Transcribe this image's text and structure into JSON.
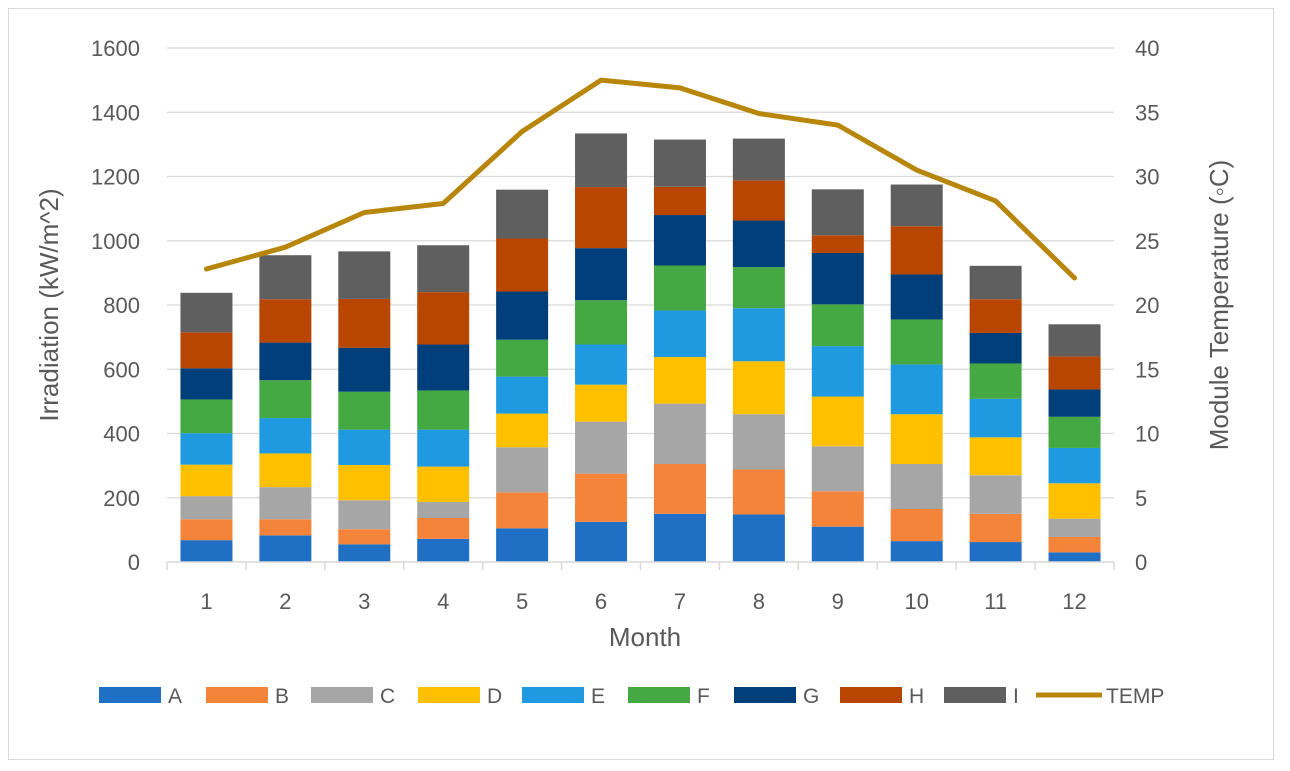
{
  "chart_data": {
    "type": "bar",
    "stacked": true,
    "title": "",
    "xlabel": "Month",
    "ylabel": "Irradiation (kW/m^2)",
    "y2label": "Module Temperature (◦C)",
    "ylim": [
      0,
      1600
    ],
    "y2lim": [
      0,
      40
    ],
    "yticks": [
      "0",
      "200",
      "400",
      "600",
      "800",
      "1000",
      "1200",
      "1400",
      "1600"
    ],
    "y2ticks": [
      "0",
      "5",
      "10",
      "15",
      "20",
      "25",
      "30",
      "35",
      "40"
    ],
    "grid": true,
    "legend": "bottom",
    "categories": [
      "1",
      "2",
      "3",
      "4",
      "5",
      "6",
      "7",
      "8",
      "9",
      "10",
      "11",
      "12"
    ],
    "series": [
      {
        "name": "A",
        "color": "#1f6fc4",
        "values": [
          68,
          83,
          55,
          72,
          105,
          125,
          150,
          148,
          110,
          65,
          62,
          30
        ]
      },
      {
        "name": "B",
        "color": "#f5843b",
        "values": [
          65,
          50,
          47,
          65,
          112,
          150,
          155,
          140,
          110,
          100,
          88,
          48
        ]
      },
      {
        "name": "C",
        "color": "#a6a6a6",
        "values": [
          72,
          100,
          90,
          50,
          140,
          162,
          188,
          172,
          140,
          140,
          120,
          57
        ]
      },
      {
        "name": "D",
        "color": "#ffc000",
        "values": [
          98,
          105,
          110,
          110,
          105,
          115,
          145,
          165,
          155,
          155,
          118,
          110
        ]
      },
      {
        "name": "E",
        "color": "#1f9ae0",
        "values": [
          98,
          110,
          110,
          115,
          115,
          125,
          145,
          165,
          157,
          155,
          120,
          110
        ]
      },
      {
        "name": "F",
        "color": "#44a843",
        "values": [
          105,
          118,
          118,
          122,
          115,
          138,
          140,
          128,
          130,
          140,
          110,
          97
        ]
      },
      {
        "name": "G",
        "color": "#003f7a",
        "values": [
          97,
          117,
          137,
          143,
          150,
          162,
          157,
          145,
          160,
          140,
          95,
          85
        ]
      },
      {
        "name": "H",
        "color": "#b84500",
        "values": [
          112,
          135,
          152,
          163,
          165,
          190,
          88,
          125,
          55,
          150,
          105,
          103
        ]
      },
      {
        "name": "I",
        "color": "#5f5f5f",
        "values": [
          123,
          137,
          148,
          146,
          152,
          167,
          147,
          130,
          143,
          130,
          104,
          100
        ]
      }
    ],
    "line_series": {
      "name": "TEMP",
      "color": "#b8860b",
      "axis": "right",
      "values": [
        22.8,
        24.5,
        27.2,
        27.9,
        33.5,
        37.5,
        36.9,
        34.9,
        34.0,
        30.5,
        28.1,
        22.1
      ]
    }
  }
}
